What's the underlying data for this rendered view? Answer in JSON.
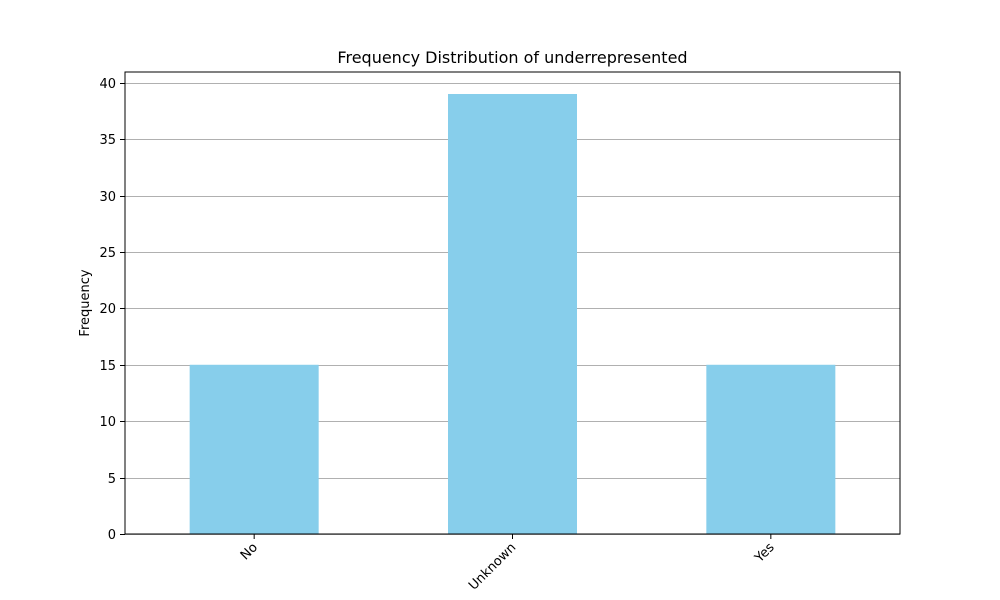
{
  "chart_data": {
    "type": "bar",
    "title": "Frequency Distribution of underrepresented",
    "xlabel": "",
    "ylabel": "Frequency",
    "categories": [
      "No",
      "Unknown",
      "Yes"
    ],
    "values": [
      15,
      39,
      15
    ],
    "ylim": [
      0,
      40.95
    ],
    "yticks": [
      0,
      5,
      10,
      15,
      20,
      25,
      30,
      35,
      40
    ],
    "grid": "y-axis horizontal lines",
    "legend": "none",
    "x_tick_rotation_deg": 45,
    "colors": {
      "bar": "#87ceeb",
      "grid": "#b0b0b0",
      "axis": "#000000",
      "background": "#ffffff"
    }
  }
}
